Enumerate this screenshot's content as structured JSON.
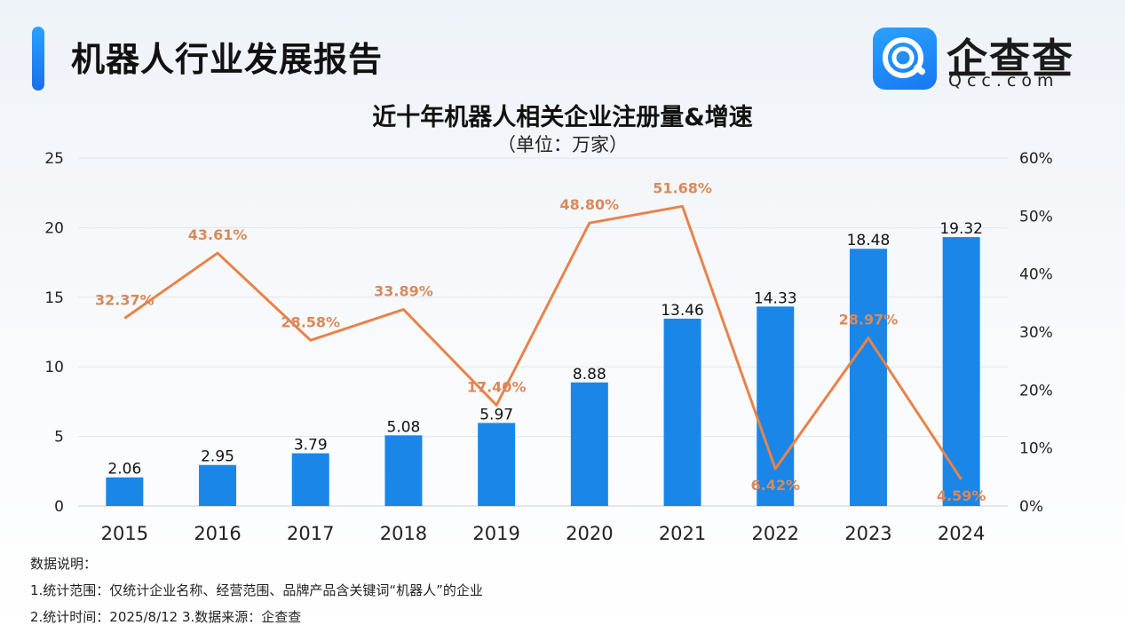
{
  "header": {
    "title": "机器人行业发展报告",
    "brand_name": "企查查",
    "brand_domain": "Qcc.com"
  },
  "notes": {
    "heading": "数据说明：",
    "line1": "1.统计范围：仅统计企业名称、经营范围、品牌产品含关键词“机器人”的企业",
    "line2": " 2.统计时间：2025/8/12  3.数据来源：企查查"
  },
  "colors": {
    "bar": "#1a86e8",
    "line": "#e8834a",
    "line_label": "#d9895a",
    "accent": "#1b7bea"
  },
  "chart_data": {
    "type": "bar",
    "title": "近十年机器人相关企业注册量&增速",
    "subtitle": "（单位：万家）",
    "categories": [
      "2015",
      "2016",
      "2017",
      "2018",
      "2019",
      "2020",
      "2021",
      "2022",
      "2023",
      "2024"
    ],
    "series": [
      {
        "name": "注册量",
        "type": "bar",
        "axis": "left",
        "values": [
          2.06,
          2.95,
          3.79,
          5.08,
          5.97,
          8.88,
          13.46,
          14.33,
          18.48,
          19.32
        ],
        "labels": [
          "2.06",
          "2.95",
          "3.79",
          "5.08",
          "5.97",
          "8.88",
          "13.46",
          "14.33",
          "18.48",
          "19.32"
        ]
      },
      {
        "name": "增速",
        "type": "line",
        "axis": "right",
        "values": [
          32.37,
          43.61,
          28.58,
          33.89,
          17.4,
          48.8,
          51.68,
          6.42,
          28.97,
          4.59
        ],
        "labels": [
          "32.37%",
          "43.61%",
          "28.58%",
          "33.89%",
          "17.40%",
          "48.80%",
          "51.68%",
          "6.42%",
          "28.97%",
          "4.59%"
        ]
      }
    ],
    "y_left": {
      "min": 0,
      "max": 25,
      "ticks": [
        0,
        5,
        10,
        15,
        20,
        25
      ],
      "tick_labels": [
        "0",
        "5",
        "10",
        "15",
        "20",
        "25"
      ]
    },
    "y_right": {
      "min": 0,
      "max": 60,
      "ticks": [
        0,
        10,
        20,
        30,
        40,
        50,
        60
      ],
      "tick_labels": [
        "0%",
        "10%",
        "20%",
        "30%",
        "40%",
        "50%",
        "60%"
      ]
    },
    "grid": true
  }
}
